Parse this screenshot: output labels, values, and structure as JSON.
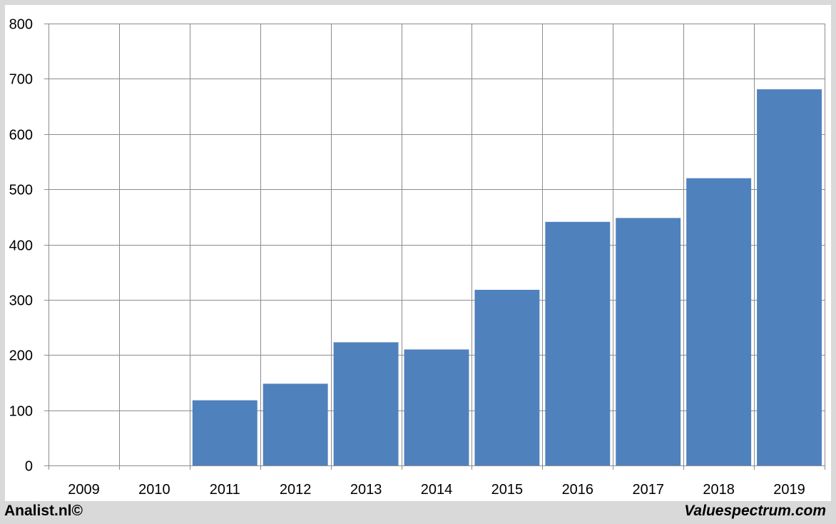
{
  "chart_data": {
    "type": "bar",
    "categories": [
      "2009",
      "2010",
      "2011",
      "2012",
      "2013",
      "2014",
      "2015",
      "2016",
      "2017",
      "2018",
      "2019"
    ],
    "values": [
      0,
      0,
      118,
      148,
      223,
      210,
      318,
      441,
      448,
      520,
      681
    ],
    "title": "",
    "xlabel": "",
    "ylabel": "",
    "ylim": [
      0,
      800
    ],
    "yticks": [
      0,
      100,
      200,
      300,
      400,
      500,
      600,
      700,
      800
    ],
    "grid": true,
    "legend": "none",
    "colors": {
      "bar": "#4f81bd",
      "grid": "#8c8c8c",
      "background": "#ffffff",
      "frame": "#d9d9d9"
    }
  },
  "footer": {
    "left": "Analist.nl©",
    "right": "Valuespectrum.com"
  }
}
